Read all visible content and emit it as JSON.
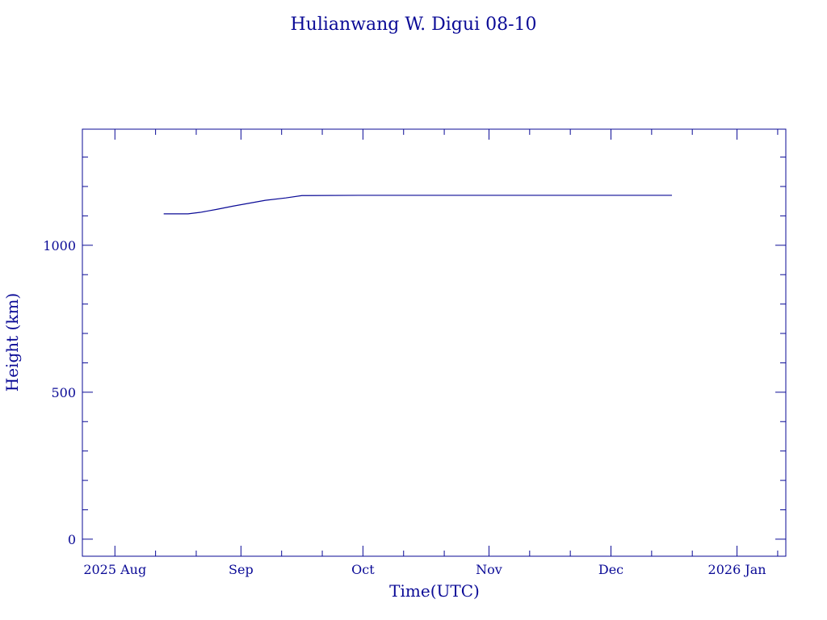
{
  "colors": {
    "foreground": "#0a0a96",
    "background": "#ffffff"
  },
  "chart_data": {
    "type": "line",
    "title": "Hulianwang W. Digui 08-10",
    "xlabel": "Time(UTC)",
    "ylabel": "Height (km)",
    "xlim": [
      "2025-07-24",
      "2026-01-13"
    ],
    "ylim": [
      -58,
      1395
    ],
    "x_major_ticks": [
      {
        "date": "2025-08-01",
        "label": "2025 Aug"
      },
      {
        "date": "2025-09-01",
        "label": "Sep"
      },
      {
        "date": "2025-10-01",
        "label": "Oct"
      },
      {
        "date": "2025-11-01",
        "label": "Nov"
      },
      {
        "date": "2025-12-01",
        "label": "Dec"
      },
      {
        "date": "2026-01-01",
        "label": "2026 Jan"
      }
    ],
    "y_major_ticks": [
      0,
      500,
      1000
    ],
    "y_minor_step": 100,
    "grid": false,
    "series": [
      {
        "values": [
          {
            "x": "2025-08-13",
            "y": 1107
          },
          {
            "x": "2025-08-19",
            "y": 1107
          },
          {
            "x": "2025-08-22",
            "y": 1112
          },
          {
            "x": "2025-08-26",
            "y": 1122
          },
          {
            "x": "2025-08-30",
            "y": 1133
          },
          {
            "x": "2025-09-03",
            "y": 1143
          },
          {
            "x": "2025-09-07",
            "y": 1153
          },
          {
            "x": "2025-09-12",
            "y": 1161
          },
          {
            "x": "2025-09-16",
            "y": 1169
          },
          {
            "x": "2025-09-30",
            "y": 1170
          },
          {
            "x": "2025-10-31",
            "y": 1170
          },
          {
            "x": "2025-11-30",
            "y": 1170
          },
          {
            "x": "2025-12-16",
            "y": 1170
          }
        ]
      }
    ]
  }
}
